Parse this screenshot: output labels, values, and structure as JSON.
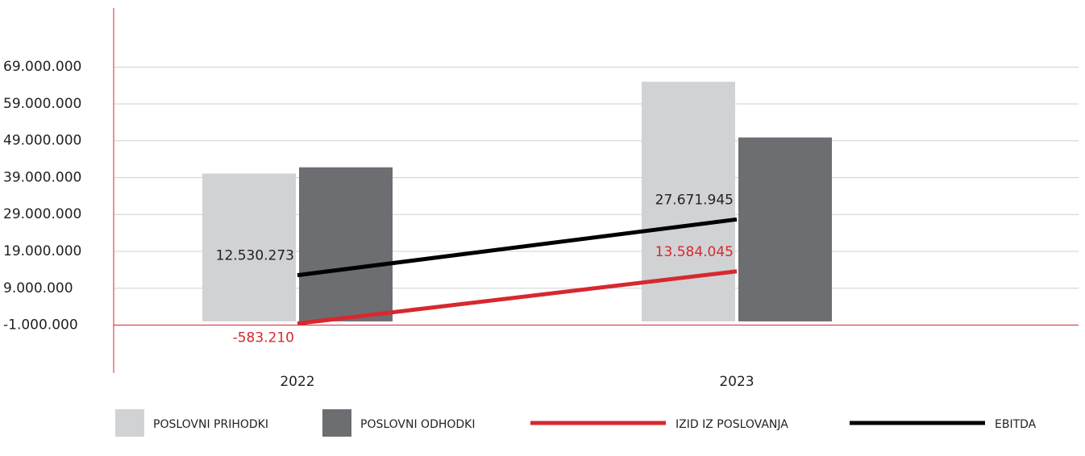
{
  "chart_data": {
    "type": "bar_line",
    "categories": [
      "2022",
      "2023"
    ],
    "series": [
      {
        "name": "POSLOVNI PRIHODKI",
        "type": "bar",
        "color": "#d1d2d4",
        "values": [
          40100000,
          65000000
        ]
      },
      {
        "name": "POSLOVNI ODHODKI",
        "type": "bar",
        "color": "#6d6e71",
        "values": [
          41800000,
          49900000
        ]
      },
      {
        "name": "IZID IZ POSLOVANJA",
        "type": "line",
        "color": "#d7282f",
        "values": [
          -583210,
          13584045
        ],
        "value_labels": [
          "-583.210",
          "13.584.045"
        ]
      },
      {
        "name": "EBITDA",
        "type": "line",
        "color": "#000000",
        "values": [
          12530273,
          27671945
        ],
        "value_labels": [
          "12.530.273",
          "27.671.945"
        ]
      }
    ],
    "ylim": [
      -14000000,
      85000000
    ],
    "yticks": [
      {
        "value": -1000000,
        "label": "-1.000.000"
      },
      {
        "value": 9000000,
        "label": "9.000.000"
      },
      {
        "value": 19000000,
        "label": "19.000.000"
      },
      {
        "value": 29000000,
        "label": "29.000.000"
      },
      {
        "value": 39000000,
        "label": "39.000.000"
      },
      {
        "value": 49000000,
        "label": "49.000.000"
      },
      {
        "value": 59000000,
        "label": "59.000.000"
      },
      {
        "value": 69000000,
        "label": "69.000.000"
      }
    ],
    "grid": true
  }
}
